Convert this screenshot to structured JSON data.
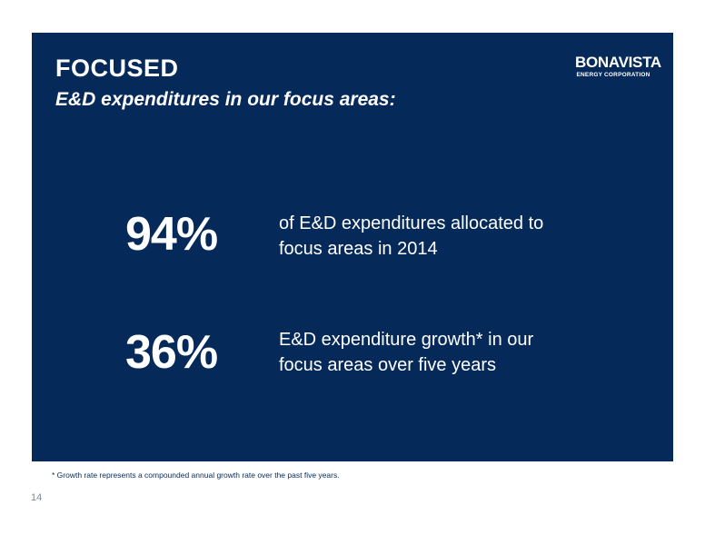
{
  "header": {
    "title": "FOCUSED",
    "subtitle": "E&D expenditures in our focus areas:"
  },
  "logo": {
    "name": "BONAVISTA",
    "tagline": "ENERGY CORPORATION"
  },
  "stats": [
    {
      "value": "94%",
      "line1": "of E&D expenditures allocated to",
      "line2": "focus areas in 2014"
    },
    {
      "value": "36%",
      "line1": "E&D expenditure growth* in our",
      "line2": "focus areas over five years"
    }
  ],
  "footnote": "*  Growth rate represents a compounded annual growth rate over the past five years.",
  "page_number": "14",
  "colors": {
    "panel_background": "#052a5a",
    "text_on_panel": "#ffffff"
  }
}
